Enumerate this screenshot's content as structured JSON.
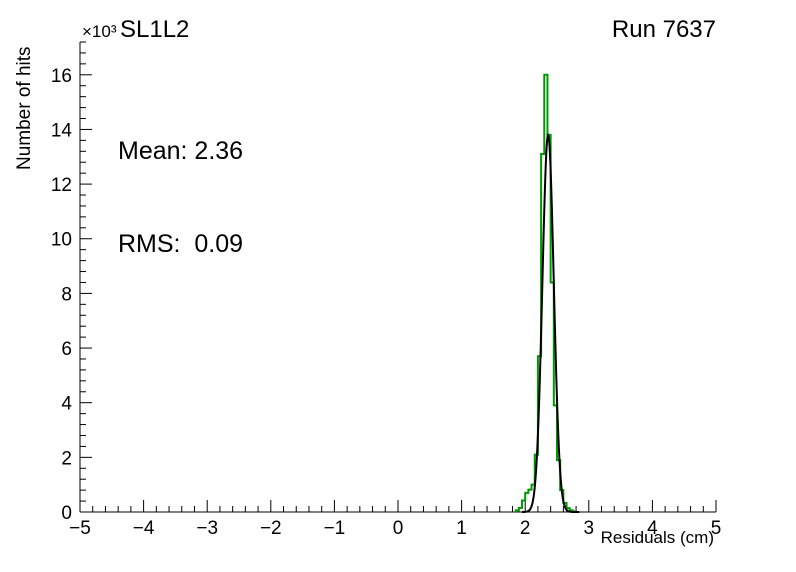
{
  "header": {
    "title": "SL1L2",
    "run_label": "Run 7637"
  },
  "axes": {
    "xlabel": "Residuals (cm)",
    "ylabel": "Number of hits",
    "y_multiplier": "×10³"
  },
  "stats": {
    "mean_line": "Mean: 2.36",
    "rms_line": "RMS:  0.09"
  },
  "colors": {
    "histogram": "#009900",
    "fit": "#000000",
    "axis": "#000000",
    "text": "#000000"
  },
  "chart_data": {
    "type": "bar",
    "title": "SL1L2",
    "xlabel": "Residuals (cm)",
    "ylabel": "Number of hits",
    "xlim": [
      -5,
      5
    ],
    "ylim": [
      0,
      17200
    ],
    "y_unit_multiplier": 1000,
    "x_ticks": [
      -5,
      -4,
      -3,
      -2,
      -1,
      0,
      1,
      2,
      3,
      4,
      5
    ],
    "y_ticks_thousands": [
      0,
      2,
      4,
      6,
      8,
      10,
      12,
      14,
      16
    ],
    "x_minor_step": 0.2,
    "y_minor_step": 400,
    "grid": false,
    "legend": "none",
    "histogram": {
      "name": "residuals-histogram",
      "bin_width": 0.05,
      "bins": [
        {
          "x": 1.85,
          "y": 60
        },
        {
          "x": 1.9,
          "y": 150
        },
        {
          "x": 1.95,
          "y": 420
        },
        {
          "x": 2.0,
          "y": 700
        },
        {
          "x": 2.05,
          "y": 820
        },
        {
          "x": 2.1,
          "y": 1000
        },
        {
          "x": 2.15,
          "y": 2100
        },
        {
          "x": 2.2,
          "y": 5700
        },
        {
          "x": 2.25,
          "y": 13100
        },
        {
          "x": 2.3,
          "y": 16000
        },
        {
          "x": 2.35,
          "y": 13800
        },
        {
          "x": 2.4,
          "y": 8400
        },
        {
          "x": 2.45,
          "y": 3900
        },
        {
          "x": 2.5,
          "y": 1900
        },
        {
          "x": 2.55,
          "y": 800
        },
        {
          "x": 2.6,
          "y": 330
        },
        {
          "x": 2.65,
          "y": 140
        },
        {
          "x": 2.7,
          "y": 60
        },
        {
          "x": 2.75,
          "y": 20
        }
      ]
    },
    "fit": {
      "name": "gaussian-fit",
      "shape": "gaussian",
      "mean": 2.36,
      "sigma": 0.09,
      "amplitude": 13800,
      "range": [
        1.95,
        2.85
      ]
    },
    "stats": {
      "mean": 2.36,
      "rms": 0.09
    }
  }
}
